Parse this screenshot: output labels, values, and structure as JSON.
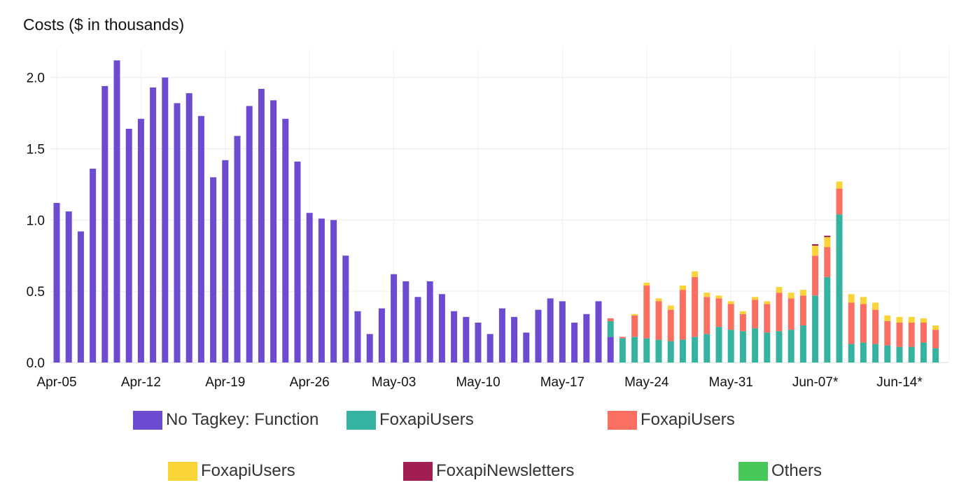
{
  "chart_data": {
    "type": "bar",
    "stacked": true,
    "title": "Costs ($ in thousands)",
    "xlabel": "",
    "ylabel": "",
    "ylim": [
      0,
      2.2
    ],
    "yticks": [
      0.0,
      0.5,
      1.0,
      1.5,
      2.0
    ],
    "ytick_labels": [
      "0.0",
      "0.5",
      "1.0",
      "1.5",
      "2.0"
    ],
    "xtick_labels": [
      "Apr-05",
      "Apr-12",
      "Apr-19",
      "Apr-26",
      "May-03",
      "May-10",
      "May-17",
      "May-24",
      "May-31",
      "Jun-07*",
      "Jun-14*"
    ],
    "grid": true,
    "legend_position": "bottom",
    "categories": [
      "Apr-05",
      "Apr-06",
      "Apr-07",
      "Apr-08",
      "Apr-09",
      "Apr-10",
      "Apr-11",
      "Apr-12",
      "Apr-13",
      "Apr-14",
      "Apr-15",
      "Apr-16",
      "Apr-17",
      "Apr-18",
      "Apr-19",
      "Apr-20",
      "Apr-21",
      "Apr-22",
      "Apr-23",
      "Apr-24",
      "Apr-25",
      "Apr-26",
      "Apr-27",
      "Apr-28",
      "Apr-29",
      "Apr-30",
      "May-01",
      "May-02",
      "May-03",
      "May-04",
      "May-05",
      "May-06",
      "May-07",
      "May-08",
      "May-09",
      "May-10",
      "May-11",
      "May-12",
      "May-13",
      "May-14",
      "May-15",
      "May-16",
      "May-17",
      "May-18",
      "May-19",
      "May-20",
      "May-21",
      "May-22",
      "May-23",
      "May-24",
      "May-25",
      "May-26",
      "May-27",
      "May-28",
      "May-29",
      "May-30",
      "May-31",
      "Jun-01",
      "Jun-02",
      "Jun-03",
      "Jun-04",
      "Jun-05",
      "Jun-06",
      "Jun-07",
      "Jun-08",
      "Jun-09",
      "Jun-10",
      "Jun-11",
      "Jun-12",
      "Jun-13",
      "Jun-14",
      "Jun-15",
      "Jun-16",
      "Jun-17"
    ],
    "series": [
      {
        "name": "No Tagkey: Function",
        "color": "#6c4bd1",
        "values": [
          1.12,
          1.06,
          0.92,
          1.36,
          1.94,
          2.12,
          1.64,
          1.71,
          1.93,
          2.0,
          1.82,
          1.89,
          1.73,
          1.3,
          1.42,
          1.59,
          1.8,
          1.92,
          1.84,
          1.71,
          1.41,
          1.05,
          1.01,
          1.0,
          0.75,
          0.36,
          0.2,
          0.38,
          0.62,
          0.57,
          0.46,
          0.57,
          0.48,
          0.36,
          0.32,
          0.28,
          0.2,
          0.38,
          0.32,
          0.21,
          0.37,
          0.45,
          0.43,
          0.28,
          0.34,
          0.43,
          0.18,
          0,
          0,
          0,
          0,
          0,
          0,
          0,
          0,
          0,
          0,
          0,
          0,
          0,
          0,
          0,
          0,
          0,
          0,
          0,
          0,
          0,
          0,
          0,
          0,
          0,
          0,
          0
        ]
      },
      {
        "name": "FoxapiUsers",
        "color": "#36b2a0",
        "values": [
          0,
          0,
          0,
          0,
          0,
          0,
          0,
          0,
          0,
          0,
          0,
          0,
          0,
          0,
          0,
          0,
          0,
          0,
          0,
          0,
          0,
          0,
          0,
          0,
          0,
          0,
          0,
          0,
          0,
          0,
          0,
          0,
          0,
          0,
          0,
          0,
          0,
          0,
          0,
          0,
          0,
          0,
          0,
          0,
          0,
          0,
          0.11,
          0.17,
          0.18,
          0.17,
          0.16,
          0.15,
          0.16,
          0.18,
          0.2,
          0.25,
          0.23,
          0.22,
          0.24,
          0.21,
          0.22,
          0.23,
          0.26,
          0.47,
          0.6,
          1.04,
          0.13,
          0.14,
          0.13,
          0.12,
          0.11,
          0.11,
          0.14,
          0.1
        ]
      },
      {
        "name": "FoxapiUsers",
        "color": "#fb6f62",
        "values": [
          0,
          0,
          0,
          0,
          0,
          0,
          0,
          0,
          0,
          0,
          0,
          0,
          0,
          0,
          0,
          0,
          0,
          0,
          0,
          0,
          0,
          0,
          0,
          0,
          0,
          0,
          0,
          0,
          0,
          0,
          0,
          0,
          0,
          0,
          0,
          0,
          0,
          0,
          0,
          0,
          0,
          0,
          0,
          0,
          0,
          0,
          0.02,
          0.01,
          0.15,
          0.37,
          0.27,
          0.22,
          0.35,
          0.42,
          0.26,
          0.2,
          0.18,
          0.12,
          0.2,
          0.2,
          0.27,
          0.22,
          0.21,
          0.28,
          0.21,
          0.18,
          0.29,
          0.27,
          0.24,
          0.17,
          0.17,
          0.17,
          0.14,
          0.13
        ]
      },
      {
        "name": "FoxapiUsers",
        "color": "#fad338",
        "values": [
          0,
          0,
          0,
          0,
          0,
          0,
          0,
          0,
          0,
          0,
          0,
          0,
          0,
          0,
          0,
          0,
          0,
          0,
          0,
          0,
          0,
          0,
          0,
          0,
          0,
          0,
          0,
          0,
          0,
          0,
          0,
          0,
          0,
          0,
          0,
          0,
          0,
          0,
          0,
          0,
          0,
          0,
          0,
          0,
          0,
          0,
          0,
          0,
          0.01,
          0.02,
          0.02,
          0.03,
          0.03,
          0.04,
          0.03,
          0.02,
          0.02,
          0.02,
          0.02,
          0.02,
          0.04,
          0.04,
          0.04,
          0.07,
          0.07,
          0.05,
          0.06,
          0.05,
          0.05,
          0.04,
          0.04,
          0.04,
          0.03,
          0.03
        ]
      },
      {
        "name": "FoxapiNewsletters",
        "color": "#a01e52",
        "values": [
          0,
          0,
          0,
          0,
          0,
          0,
          0,
          0,
          0,
          0,
          0,
          0,
          0,
          0,
          0,
          0,
          0,
          0,
          0,
          0,
          0,
          0,
          0,
          0,
          0,
          0,
          0,
          0,
          0,
          0,
          0,
          0,
          0,
          0,
          0,
          0,
          0,
          0,
          0,
          0,
          0,
          0,
          0,
          0,
          0,
          0,
          0,
          0,
          0,
          0,
          0,
          0,
          0,
          0,
          0,
          0,
          0,
          0,
          0,
          0,
          0,
          0,
          0,
          0.01,
          0.01,
          0,
          0,
          0,
          0,
          0,
          0,
          0,
          0,
          0
        ]
      },
      {
        "name": "",
        "color": "#ffffff",
        "values": [
          0,
          0,
          0,
          0,
          0,
          0,
          0,
          0,
          0,
          0,
          0,
          0,
          0,
          0,
          0,
          0,
          0,
          0,
          0,
          0,
          0,
          0,
          0,
          0,
          0,
          0,
          0,
          0,
          0,
          0,
          0,
          0,
          0,
          0,
          0,
          0,
          0,
          0,
          0,
          0,
          0,
          0,
          0,
          0,
          0,
          0,
          0,
          0,
          0,
          0,
          0,
          0,
          0,
          0,
          0,
          0,
          0,
          0,
          0,
          0,
          0,
          0,
          0,
          0,
          0,
          0,
          0,
          0,
          0,
          0,
          0,
          0,
          0,
          0
        ]
      },
      {
        "name": "Others",
        "color": "#45c75a",
        "values": [
          0,
          0,
          0,
          0,
          0,
          0,
          0,
          0,
          0,
          0,
          0,
          0,
          0,
          0,
          0,
          0,
          0,
          0,
          0,
          0,
          0,
          0,
          0,
          0,
          0,
          0,
          0,
          0,
          0,
          0,
          0,
          0,
          0,
          0,
          0,
          0,
          0,
          0,
          0,
          0,
          0,
          0,
          0,
          0,
          0,
          0,
          0,
          0,
          0,
          0,
          0,
          0,
          0,
          0,
          0,
          0,
          0,
          0,
          0,
          0,
          0,
          0,
          0,
          0,
          0,
          0,
          0,
          0,
          0,
          0,
          0,
          0,
          0,
          0
        ]
      }
    ]
  }
}
